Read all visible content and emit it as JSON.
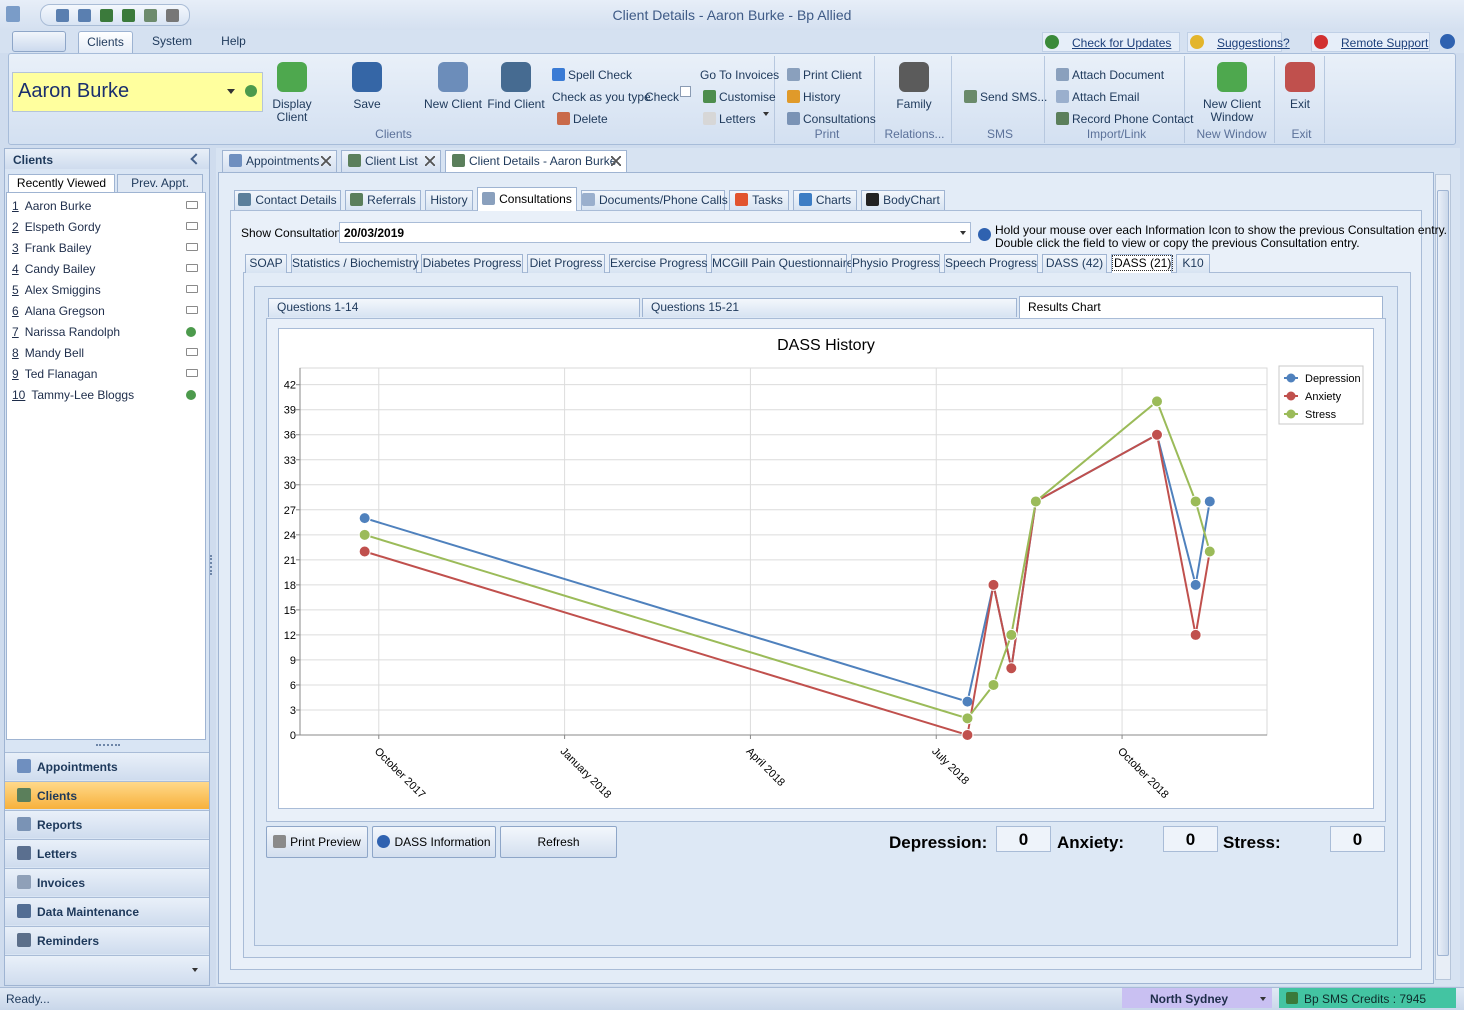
{
  "window": {
    "title": "Client Details - Aaron Burke - Bp Allied"
  },
  "menu": {
    "tabs": [
      "Clients",
      "System",
      "Help"
    ],
    "links": [
      "Check for Updates",
      "Suggestions?",
      "Remote Support"
    ]
  },
  "ribbon": {
    "client_name": "Aaron Burke",
    "buttons": [
      "Display Client",
      "Save",
      "New Client",
      "Find Client",
      "Spell Check",
      "Check as you type",
      "Check",
      "Delete",
      "Go To Invoices",
      "Customise",
      "Letters",
      "Print Client",
      "History",
      "Consultations",
      "Family",
      "Send SMS...",
      "Attach Document",
      "Attach Email",
      "Record Phone Contact",
      "New Client Window",
      "Exit"
    ],
    "groups": [
      "Clients",
      "Print",
      "Relations...",
      "SMS",
      "Import/Link",
      "New Window",
      "Exit"
    ]
  },
  "sidebar": {
    "title": "Clients",
    "tabs": [
      "Recently Viewed",
      "Prev. Appt."
    ],
    "recent": [
      {
        "number": 1,
        "name": "Aaron Burke"
      },
      {
        "number": 2,
        "name": "Elspeth Gordy"
      },
      {
        "number": 3,
        "name": "Frank Bailey"
      },
      {
        "number": 4,
        "name": "Candy Bailey"
      },
      {
        "number": 5,
        "name": "Alex Smiggins"
      },
      {
        "number": 6,
        "name": "Alana Gregson"
      },
      {
        "number": 7,
        "name": "Narissa Randolph"
      },
      {
        "number": 8,
        "name": "Mandy Bell"
      },
      {
        "number": 9,
        "name": "Ted Flanagan"
      },
      {
        "number": 10,
        "name": "Tammy-Lee Bloggs"
      }
    ],
    "nav": [
      "Appointments",
      "Clients",
      "Reports",
      "Letters",
      "Invoices",
      "Data Maintenance",
      "Reminders"
    ]
  },
  "documents": {
    "tabs": [
      "Appointments",
      "Client List",
      "Client Details - Aaron Burke"
    ]
  },
  "client_tabs": [
    "Contact Details",
    "Referrals",
    "History",
    "Consultations",
    "Documents/Phone Calls",
    "Tasks",
    "Charts",
    "BodyChart"
  ],
  "consultation": {
    "label": "Show Consultation:",
    "date": "20/03/2019",
    "info": [
      "Hold your mouse over each Information Icon to show the previous Consultation entry.",
      "Double click the field to view or copy the previous Consultation entry."
    ],
    "tabs": [
      "SOAP",
      "Statistics / Biochemistry",
      "Diabetes Progress",
      "Diet Progress",
      "Exercise Progress",
      "MCGill Pain Questionnaire",
      "Physio Progress",
      "Speech Progress",
      "DASS (42)",
      "DASS (21)",
      "K10"
    ],
    "dass_tabs": [
      "Questions 1-14",
      "Questions 15-21",
      "Results Chart"
    ],
    "buttons": [
      "Print Preview",
      "DASS Information",
      "Refresh"
    ],
    "scores": [
      {
        "label": "Depression:",
        "value": 0
      },
      {
        "label": "Anxiety:",
        "value": 0
      },
      {
        "label": "Stress:",
        "value": 0
      }
    ]
  },
  "chart_data": {
    "type": "line",
    "title": "DASS History",
    "x": [
      2017.731,
      2018.542,
      2018.577,
      2018.601,
      2018.634,
      2018.797,
      2018.849,
      2018.868
    ],
    "series": [
      {
        "name": "Depression",
        "color": "#4f81bd",
        "values": [
          26,
          4,
          18,
          8,
          28,
          36,
          18,
          28
        ]
      },
      {
        "name": "Anxiety",
        "color": "#c0504d",
        "values": [
          22,
          0,
          18,
          8,
          28,
          36,
          12,
          22
        ]
      },
      {
        "name": "Stress",
        "color": "#9bbb59",
        "values": [
          24,
          2,
          6,
          12,
          28,
          40,
          28,
          22
        ]
      }
    ],
    "xlim": [
      2017.644,
      2018.945
    ],
    "xticks": [
      {
        "value": 2017.75,
        "label": "October 2017"
      },
      {
        "value": 2018.0,
        "label": "January 2018"
      },
      {
        "value": 2018.25,
        "label": "April 2018"
      },
      {
        "value": 2018.5,
        "label": "July 2018"
      },
      {
        "value": 2018.75,
        "label": "October 2018"
      }
    ],
    "ylim": [
      0,
      44
    ],
    "yticks": [
      0,
      3,
      6,
      9,
      12,
      15,
      18,
      21,
      24,
      27,
      30,
      33,
      36,
      39,
      42
    ],
    "grid": true,
    "legend": "top-right"
  },
  "status": {
    "text": "Ready...",
    "location": "North Sydney",
    "sms": "Bp SMS Credits : 7945"
  }
}
